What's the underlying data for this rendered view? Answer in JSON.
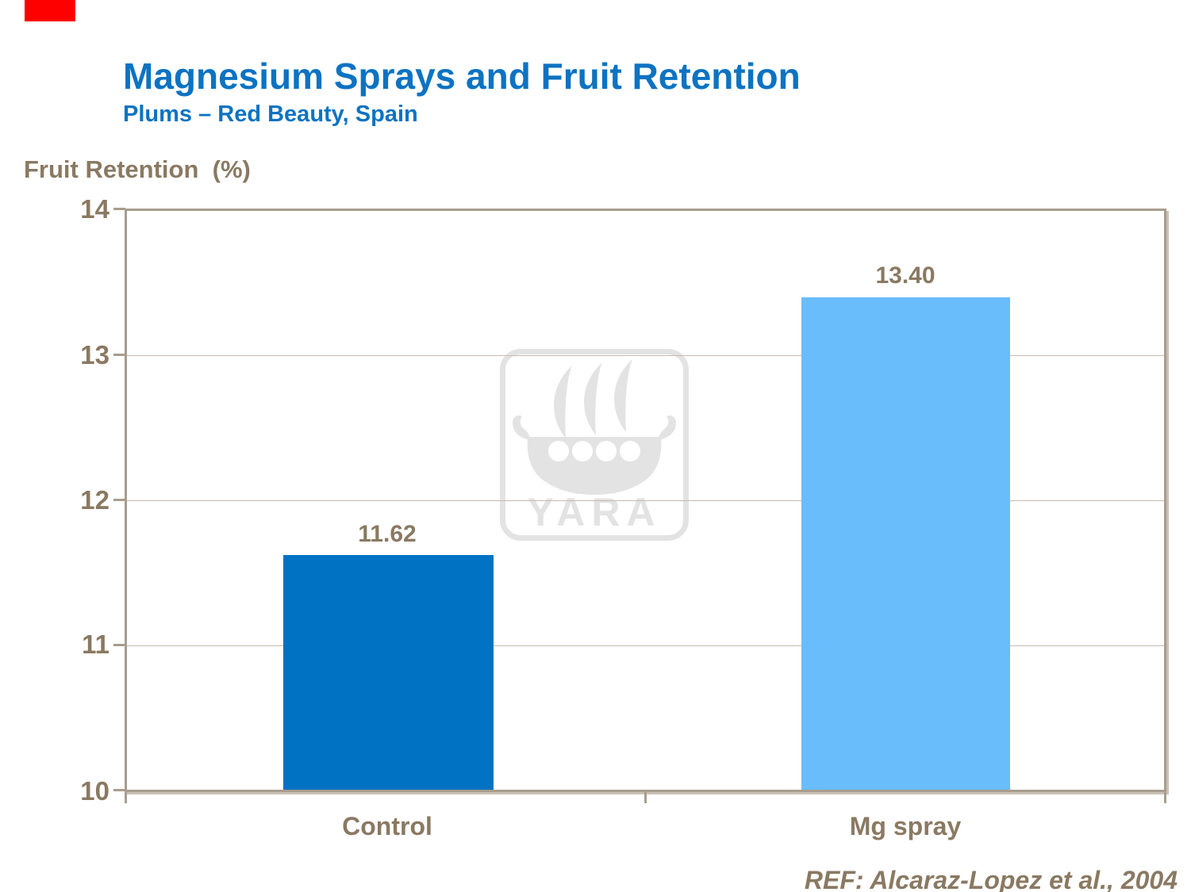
{
  "annotation": {
    "color": "#FE0000",
    "shape": "small-red-rectangle-top-left"
  },
  "header": {
    "title": "Magnesium Sprays and Fruit Retention",
    "subtitle": "Plums – Red Beauty, Spain",
    "title_color": "#0C73C2"
  },
  "chart_data": {
    "type": "bar",
    "title": "Magnesium Sprays and Fruit Retention",
    "subtitle": "Plums – Red Beauty, Spain",
    "ylabel": "Fruit Retention  (%)",
    "xlabel": "",
    "categories": [
      "Control",
      "Mg spray"
    ],
    "values": [
      11.62,
      13.4
    ],
    "value_labels": [
      "11.62",
      "13.40"
    ],
    "bar_colors": [
      "#0072C3",
      "#69BDFB"
    ],
    "ylim": [
      10,
      14
    ],
    "yticks": [
      "14",
      "13",
      "12",
      "11",
      "10"
    ],
    "grid": true,
    "legend": false,
    "text_color": "#8A7962",
    "frame_color": "#A89D8E",
    "gridline_color": "#C5BCAE"
  },
  "watermark": {
    "text": "YARA",
    "icon": "yara-viking-ship-logo",
    "color": "#E3E3E3"
  },
  "footer": {
    "reference": "REF: Alcaraz-Lopez et al., 2004"
  }
}
